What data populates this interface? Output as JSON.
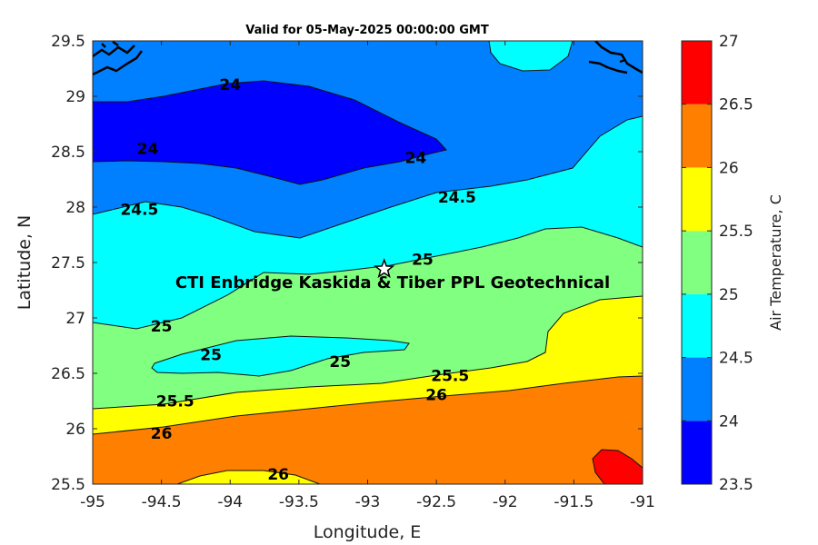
{
  "chart_data": {
    "type": "heatmap",
    "subtype": "filled-contour-map",
    "title": "Valid for 05-May-2025 00:00:00 GMT",
    "xlabel": "Longitude, E",
    "ylabel": "Latitude, N",
    "xlim": [
      -95,
      -91
    ],
    "ylim": [
      25.5,
      29.5
    ],
    "xticks": [
      "-95",
      "-94.5",
      "-94",
      "-93.5",
      "-93",
      "-92.5",
      "-92",
      "-91.5",
      "-91"
    ],
    "yticks": [
      "25.5",
      "26",
      "26.5",
      "27",
      "27.5",
      "28",
      "28.5",
      "29",
      "29.5"
    ],
    "grid": false,
    "colorbar": {
      "label": "Air Temperature, C",
      "levels": [
        23.5,
        24,
        24.5,
        25,
        25.5,
        26,
        26.5,
        27
      ],
      "tick_labels": [
        "23.5",
        "24",
        "24.5",
        "25",
        "25.5",
        "26",
        "26.5",
        "27"
      ],
      "colors": [
        "#0000ff",
        "#0080ff",
        "#00ffff",
        "#80ff80",
        "#ffff00",
        "#ff8000",
        "#ff0000",
        "#800000"
      ]
    },
    "contour_labels": [
      {
        "text": "24",
        "lon": -94.0,
        "lat": 29.1
      },
      {
        "text": "24",
        "lon": -94.6,
        "lat": 28.52
      },
      {
        "text": "24",
        "lon": -92.65,
        "lat": 28.44
      },
      {
        "text": "24.5",
        "lon": -94.66,
        "lat": 27.97
      },
      {
        "text": "24.5",
        "lon": -92.35,
        "lat": 28.08
      },
      {
        "text": "25",
        "lon": -92.6,
        "lat": 27.52
      },
      {
        "text": "25",
        "lon": -94.5,
        "lat": 26.92
      },
      {
        "text": "25",
        "lon": -94.14,
        "lat": 26.66
      },
      {
        "text": "25",
        "lon": -93.2,
        "lat": 26.6
      },
      {
        "text": "25.5",
        "lon": -94.4,
        "lat": 26.24
      },
      {
        "text": "25.5",
        "lon": -92.4,
        "lat": 26.47
      },
      {
        "text": "26",
        "lon": -92.5,
        "lat": 26.3
      },
      {
        "text": "26",
        "lon": -94.5,
        "lat": 25.95
      },
      {
        "text": "26",
        "lon": -93.65,
        "lat": 25.58
      }
    ],
    "site": {
      "name": "CTI Enbridge  Kaskida & Tiber PPL Geotechnical",
      "lon": -92.88,
      "lat": 27.44,
      "marker": "star-icon"
    }
  }
}
